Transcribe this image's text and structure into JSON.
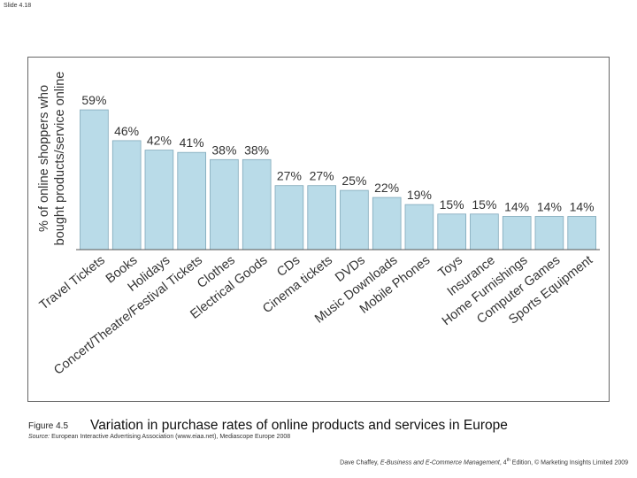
{
  "slide": {
    "label": "Slide 4.18"
  },
  "chart_data": {
    "type": "bar",
    "title": "",
    "xlabel": "",
    "ylabel": "% of online shoppers who bought products/service online",
    "ylabel_lines": [
      "% of online shoppers who",
      "bought products/service online"
    ],
    "ylim": [
      0,
      65
    ],
    "grid": false,
    "categories": [
      "Travel Tickets",
      "Books",
      "Holidays",
      "Concert/Theatre/Festival Tickets",
      "Clothes",
      "Electrical Goods",
      "CDs",
      "Cinema tickets",
      "DVDs",
      "Music Downloads",
      "Mobile Phones",
      "Toys",
      "Insurance",
      "Home Furnishings",
      "Computer Games",
      "Sports Equipment"
    ],
    "values": [
      59,
      46,
      42,
      41,
      38,
      38,
      27,
      27,
      25,
      22,
      19,
      15,
      15,
      14,
      14,
      14
    ],
    "data_labels": [
      "59%",
      "46%",
      "42%",
      "41%",
      "38%",
      "38%",
      "27%",
      "27%",
      "25%",
      "22%",
      "19%",
      "15%",
      "15%",
      "14%",
      "14%",
      "14%"
    ],
    "colors": {
      "bar_fill": "#b9dbe8",
      "bar_stroke": "#7fa8ba",
      "frame": "#666666"
    }
  },
  "caption": {
    "figure_label": "Figure 4.5",
    "title": "Variation in purchase rates of online products and services in Europe"
  },
  "source": {
    "label": "Source:",
    "text": "European Interactive Advertising Association (www.eiaa.net), Mediascope Europe 2008"
  },
  "footer": {
    "author": "Dave Chaffey,",
    "book_title": "E-Business and E-Commerce Management",
    "edition_number": ", 4",
    "edition_suffix": "th",
    "rest": " Edition, © Marketing Insights Limited 2009"
  }
}
